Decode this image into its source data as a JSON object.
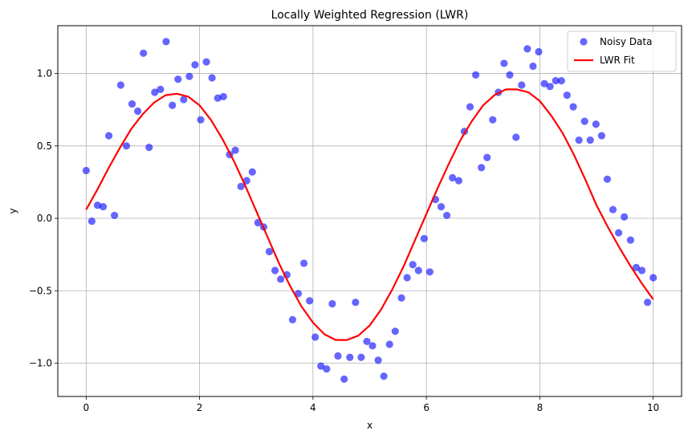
{
  "chart_data": {
    "type": "scatter",
    "title": "Locally Weighted Regression (LWR)",
    "xlabel": "x",
    "ylabel": "y",
    "xlim": [
      -0.5,
      10.5
    ],
    "ylim": [
      -1.23,
      1.33
    ],
    "xticks": [
      0,
      2,
      4,
      6,
      8,
      10
    ],
    "xtick_labels": [
      "0",
      "2",
      "4",
      "6",
      "8",
      "10"
    ],
    "yticks": [
      -1.0,
      -0.5,
      0.0,
      0.5,
      1.0
    ],
    "ytick_labels": [
      "−1.0",
      "−0.5",
      "0.0",
      "0.5",
      "1.0"
    ],
    "grid": true,
    "legend_position": "top-right",
    "series": [
      {
        "name": "Noisy Data",
        "kind": "scatter",
        "color": "#0000ff",
        "x": [
          0.0,
          0.1,
          0.2,
          0.3,
          0.4,
          0.5,
          0.61,
          0.71,
          0.81,
          0.91,
          1.01,
          1.11,
          1.21,
          1.31,
          1.41,
          1.52,
          1.62,
          1.72,
          1.82,
          1.92,
          2.02,
          2.12,
          2.22,
          2.32,
          2.42,
          2.53,
          2.63,
          2.73,
          2.83,
          2.93,
          3.03,
          3.13,
          3.23,
          3.33,
          3.43,
          3.54,
          3.64,
          3.74,
          3.84,
          3.94,
          4.04,
          4.14,
          4.24,
          4.34,
          4.44,
          4.55,
          4.65,
          4.75,
          4.85,
          4.95,
          5.05,
          5.15,
          5.25,
          5.35,
          5.45,
          5.56,
          5.66,
          5.76,
          5.86,
          5.96,
          6.06,
          6.16,
          6.26,
          6.36,
          6.46,
          6.57,
          6.67,
          6.77,
          6.87,
          6.97,
          7.07,
          7.17,
          7.27,
          7.37,
          7.47,
          7.58,
          7.68,
          7.78,
          7.88,
          7.98,
          8.08,
          8.18,
          8.28,
          8.38,
          8.48,
          8.59,
          8.69,
          8.79,
          8.89,
          8.99,
          9.09,
          9.19,
          9.29,
          9.39,
          9.49,
          9.6,
          9.7,
          9.8,
          9.9,
          10.0
        ],
        "y": [
          0.33,
          -0.02,
          0.09,
          0.08,
          0.57,
          0.02,
          0.92,
          0.5,
          0.79,
          0.74,
          1.14,
          0.49,
          0.87,
          0.89,
          1.22,
          0.78,
          0.96,
          0.82,
          0.98,
          1.06,
          0.68,
          1.08,
          0.97,
          0.83,
          0.84,
          0.44,
          0.47,
          0.22,
          0.26,
          0.32,
          -0.03,
          -0.06,
          -0.23,
          -0.36,
          -0.42,
          -0.39,
          -0.7,
          -0.52,
          -0.31,
          -0.57,
          -0.82,
          -1.02,
          -1.04,
          -0.59,
          -0.95,
          -1.11,
          -0.96,
          -0.58,
          -0.96,
          -0.85,
          -0.88,
          -0.98,
          -1.09,
          -0.87,
          -0.78,
          -0.55,
          -0.41,
          -0.32,
          -0.36,
          -0.14,
          -0.37,
          0.13,
          0.08,
          0.02,
          0.28,
          0.26,
          0.6,
          0.77,
          0.99,
          0.35,
          0.42,
          0.68,
          0.87,
          1.07,
          0.99,
          0.56,
          0.92,
          1.17,
          1.05,
          1.15,
          0.93,
          0.91,
          0.95,
          0.95,
          0.85,
          0.77,
          0.54,
          0.67,
          0.54,
          0.65,
          0.57,
          0.27,
          0.06,
          -0.1,
          0.01,
          -0.15,
          -0.34,
          -0.36,
          -0.58,
          -0.41
        ]
      },
      {
        "name": "LWR Fit",
        "kind": "line",
        "color": "#ff0000",
        "x": [
          0.0,
          0.2,
          0.4,
          0.6,
          0.8,
          1.0,
          1.2,
          1.4,
          1.6,
          1.8,
          2.0,
          2.2,
          2.4,
          2.6,
          2.8,
          3.0,
          3.2,
          3.4,
          3.6,
          3.8,
          4.0,
          4.2,
          4.4,
          4.6,
          4.8,
          5.0,
          5.2,
          5.4,
          5.6,
          5.8,
          6.0,
          6.2,
          6.4,
          6.6,
          6.8,
          7.0,
          7.2,
          7.4,
          7.6,
          7.8,
          8.0,
          8.2,
          8.4,
          8.6,
          8.8,
          9.0,
          9.2,
          9.4,
          9.6,
          9.8,
          10.0
        ],
        "y": [
          0.06,
          0.2,
          0.35,
          0.49,
          0.62,
          0.72,
          0.8,
          0.85,
          0.86,
          0.84,
          0.78,
          0.68,
          0.55,
          0.4,
          0.23,
          0.05,
          -0.13,
          -0.31,
          -0.47,
          -0.61,
          -0.72,
          -0.8,
          -0.84,
          -0.84,
          -0.81,
          -0.74,
          -0.63,
          -0.49,
          -0.33,
          -0.15,
          0.03,
          0.21,
          0.38,
          0.54,
          0.67,
          0.78,
          0.85,
          0.89,
          0.89,
          0.87,
          0.81,
          0.71,
          0.59,
          0.44,
          0.27,
          0.09,
          -0.06,
          -0.2,
          -0.33,
          -0.45,
          -0.56
        ]
      }
    ]
  }
}
